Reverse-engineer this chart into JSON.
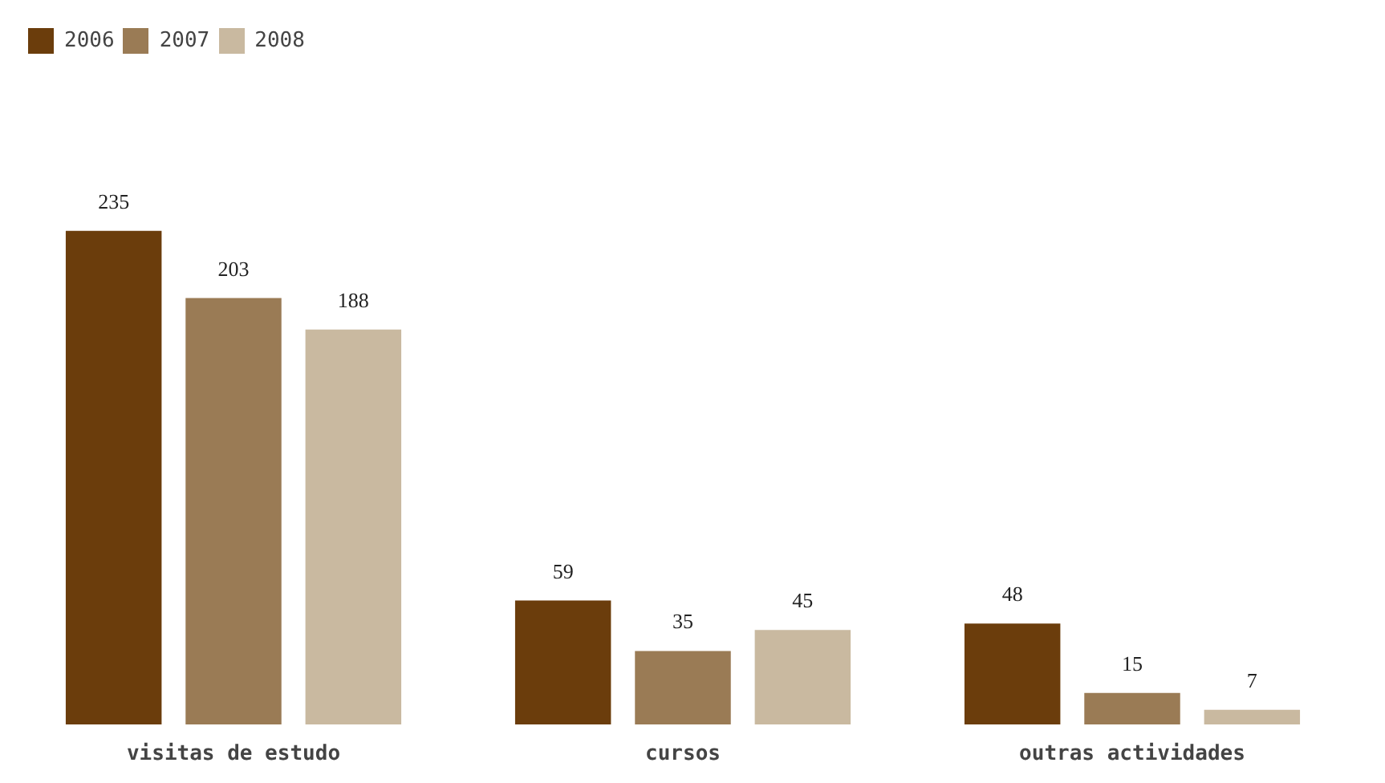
{
  "chart_data": {
    "type": "bar",
    "categories": [
      "visitas de estudo",
      "cursos",
      "outras actividades"
    ],
    "series": [
      {
        "name": "2006",
        "color": "#6b3d0c",
        "values": [
          235,
          59,
          48
        ]
      },
      {
        "name": "2007",
        "color": "#9a7b55",
        "values": [
          203,
          35,
          15
        ]
      },
      {
        "name": "2008",
        "color": "#c9b9a0",
        "values": [
          188,
          45,
          7
        ]
      }
    ],
    "data_labels": true,
    "legend": "top left",
    "grid": false
  }
}
